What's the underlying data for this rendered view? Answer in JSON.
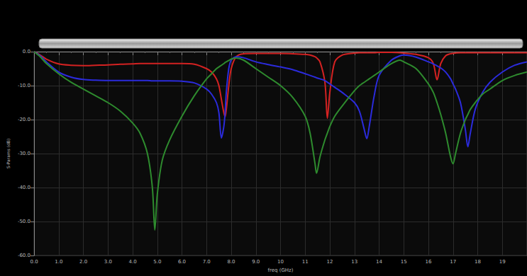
{
  "chart_data": {
    "type": "line",
    "x_label": "freq (GHz)",
    "y_label": "S-Params (dB)",
    "grid": true,
    "xlim": [
      0,
      20
    ],
    "ylim": [
      -60,
      0
    ],
    "xticks": [
      {
        "value": 0,
        "label": "0.0"
      },
      {
        "value": 1,
        "label": "1.0"
      },
      {
        "value": 2,
        "label": "2.0"
      },
      {
        "value": 3,
        "label": "3.0"
      },
      {
        "value": 4,
        "label": "4.0"
      },
      {
        "value": 5,
        "label": "5.0"
      },
      {
        "value": 6,
        "label": "6.0"
      },
      {
        "value": 7,
        "label": "7.0"
      },
      {
        "value": 8,
        "label": "8.0"
      },
      {
        "value": 9,
        "label": "9.0"
      },
      10,
      11,
      12,
      13,
      14,
      15,
      16,
      17,
      18,
      19
    ],
    "yticks": [
      {
        "value": 0,
        "label": "0.0"
      },
      {
        "value": -10,
        "label": "-10.0"
      },
      {
        "value": -20,
        "label": "-20.0"
      },
      {
        "value": -30,
        "label": "-30.0"
      },
      {
        "value": -40,
        "label": "-40.0"
      },
      {
        "value": -50,
        "label": "-50.0"
      },
      {
        "value": -60,
        "label": "-60.0"
      }
    ],
    "x": [
      0,
      0.25,
      0.5,
      1,
      1.5,
      2,
      2.5,
      3,
      3.5,
      4,
      4.3,
      4.6,
      4.8,
      4.9,
      5.0,
      5.2,
      5.5,
      6,
      6.5,
      7,
      7.2,
      7.4,
      7.5,
      7.6,
      7.7,
      7.75,
      7.8,
      7.9,
      8.0,
      8.2,
      8.5,
      9,
      9.5,
      10,
      10.5,
      11,
      11.2,
      11.4,
      11.46,
      11.6,
      11.8,
      11.9,
      12.0,
      12.2,
      12.5,
      13,
      13.2,
      13.4,
      13.5,
      13.6,
      13.8,
      14,
      14.5,
      14.85,
      15,
      15.5,
      16,
      16.2,
      16.35,
      16.5,
      16.7,
      16.9,
      17.0,
      17.1,
      17.3,
      17.5,
      17.6,
      17.7,
      17.9,
      18.2,
      18.5,
      19,
      19.5,
      20
    ],
    "series": [
      {
        "color": "#d42222",
        "values": [
          0,
          -1,
          -2.2,
          -3.6,
          -4,
          -4.1,
          -4,
          -3.9,
          -3.7,
          -3.6,
          -3.5,
          -3.5,
          -3.5,
          -3.5,
          -3.5,
          -3.5,
          -3.5,
          -3.5,
          -3.7,
          -5,
          -6,
          -8,
          -10,
          -14,
          -18,
          -19.2,
          -17,
          -10,
          -5,
          -1.5,
          -0.6,
          -0.5,
          -0.5,
          -0.5,
          -0.6,
          -0.8,
          -1,
          -1.5,
          -1.8,
          -3,
          -9,
          -19.6,
          -12,
          -3,
          -1,
          -0.4,
          -0.3,
          -0.3,
          -0.3,
          -0.3,
          -0.3,
          -0.2,
          -0.2,
          -0.3,
          -0.4,
          -0.8,
          -1.8,
          -3.5,
          -8.3,
          -3.5,
          -1.2,
          -0.6,
          -0.5,
          -0.4,
          -0.3,
          -0.3,
          -0.3,
          -0.3,
          -0.3,
          -0.3,
          -0.3,
          -0.3,
          -0.3,
          -0.3
        ]
      },
      {
        "color": "#2b2bdc",
        "values": [
          0,
          -1.2,
          -3,
          -6,
          -7.5,
          -8.2,
          -8.4,
          -8.5,
          -8.5,
          -8.5,
          -8.5,
          -8.5,
          -8.6,
          -8.6,
          -8.6,
          -8.6,
          -8.6,
          -8.7,
          -9.2,
          -11,
          -12.5,
          -15,
          -18,
          -25.4,
          -22,
          -18,
          -12,
          -5,
          -2.5,
          -1.5,
          -1.8,
          -3,
          -3.8,
          -4.5,
          -5.3,
          -6.5,
          -7,
          -7.5,
          -7.7,
          -8,
          -8.5,
          -9,
          -9.5,
          -10.5,
          -12,
          -15,
          -17.5,
          -23,
          -25.6,
          -22,
          -13,
          -7,
          -2.5,
          -1.2,
          -1,
          -1.6,
          -3,
          -3.6,
          -4.2,
          -4.8,
          -6,
          -8,
          -9.5,
          -11,
          -15,
          -23,
          -28,
          -24,
          -17,
          -12,
          -9,
          -6,
          -4,
          -3
        ]
      },
      {
        "color": "#2e8b2e",
        "values": [
          0,
          -1.5,
          -3.5,
          -6.5,
          -9,
          -11,
          -13,
          -15,
          -17.5,
          -21,
          -24,
          -30,
          -40,
          -52.5,
          -42,
          -32,
          -26,
          -19,
          -13,
          -8,
          -6.5,
          -5,
          -4.5,
          -4,
          -3.5,
          -3.2,
          -3,
          -2.6,
          -2.2,
          -1.9,
          -2.5,
          -5,
          -7.5,
          -10,
          -13.5,
          -19,
          -24,
          -33,
          -35.8,
          -31,
          -26,
          -24,
          -22,
          -19,
          -16,
          -11.5,
          -10,
          -9,
          -8.5,
          -8,
          -7,
          -6,
          -3.5,
          -2.5,
          -3,
          -5,
          -9.5,
          -12,
          -15,
          -18.5,
          -24,
          -31,
          -33,
          -30,
          -24,
          -20,
          -18.5,
          -17,
          -15,
          -12.5,
          -11,
          -8.5,
          -7,
          -6
        ]
      }
    ]
  }
}
